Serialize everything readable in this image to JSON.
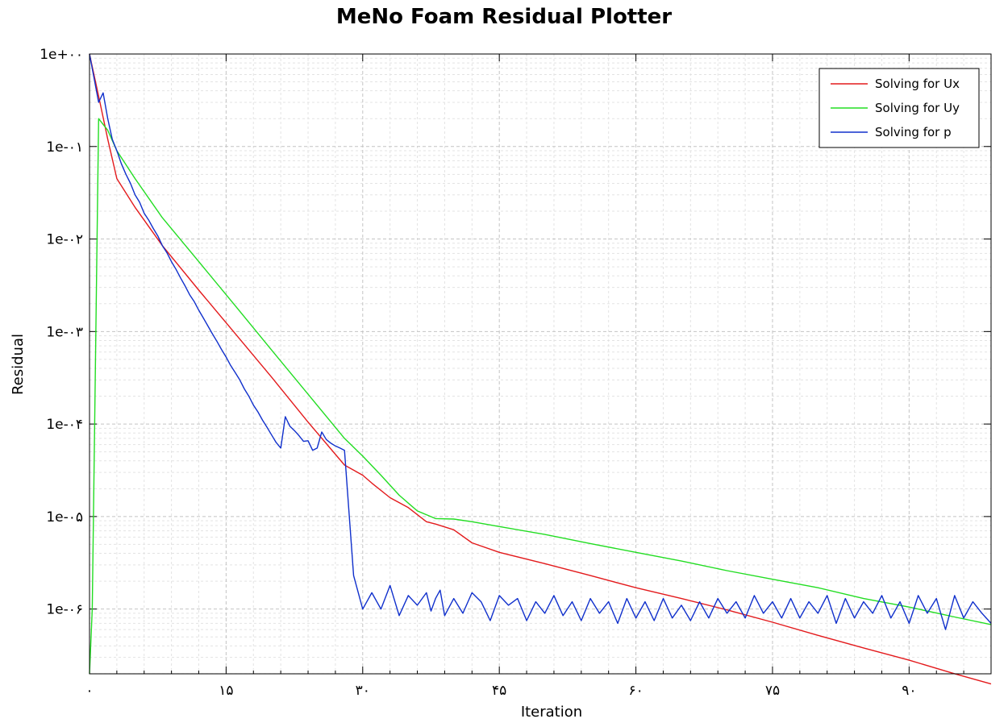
{
  "chart_data": {
    "type": "line",
    "title": "MeNo Foam Residual Plotter",
    "xlabel": "Iteration",
    "ylabel": "Residual",
    "xlim": [
      0,
      99
    ],
    "ylim_log10": [
      -6.7,
      0
    ],
    "yscale": "log",
    "grid": true,
    "legend_position": "top-right",
    "x_ticks": [
      0,
      15,
      30,
      45,
      60,
      75,
      90
    ],
    "x_tick_labels": [
      "۰",
      "۱۵",
      "۳۰",
      "۴۵",
      "۶۰",
      "۷۵",
      "۹۰"
    ],
    "y_ticks": [
      1,
      0.1,
      0.01,
      0.001,
      0.0001,
      1e-05,
      1e-06
    ],
    "y_tick_labels": [
      "1e+۰۰",
      "1e-۰۱",
      "1e-۰۲",
      "1e-۰۳",
      "1e-۰۴",
      "1e-۰۵",
      "1e-۰۶"
    ],
    "series": [
      {
        "name": "Solving for Ux",
        "color": "#e31a1c",
        "x": [
          0,
          1,
          2,
          3,
          5,
          8,
          12,
          16,
          20,
          24,
          28,
          30,
          31,
          33,
          35,
          37,
          38,
          40,
          42,
          45,
          50,
          55,
          60,
          65,
          70,
          75,
          80,
          85,
          90,
          95,
          99
        ],
        "y": [
          1,
          0.35,
          0.12,
          0.045,
          0.022,
          0.0085,
          0.0028,
          0.00095,
          0.00032,
          0.000105,
          3.6e-05,
          2.8e-05,
          2.3e-05,
          1.6e-05,
          1.25e-05,
          8.8e-06,
          8.3e-06,
          7.2e-06,
          5.2e-06,
          4.1e-06,
          3.1e-06,
          2.3e-06,
          1.7e-06,
          1.3e-06,
          9.8e-07,
          7.2e-07,
          5.2e-07,
          3.8e-07,
          2.8e-07,
          2e-07,
          1.55e-07
        ]
      },
      {
        "name": "Solving for Uy",
        "color": "#22dd22",
        "x": [
          0,
          0.3,
          1,
          2,
          3,
          5,
          8,
          12,
          16,
          20,
          24,
          28,
          30,
          32,
          34,
          36,
          38,
          40,
          42,
          45,
          50,
          55,
          60,
          65,
          70,
          75,
          80,
          85,
          90,
          95,
          99
        ],
        "y": [
          2e-07,
          1e-06,
          0.2,
          0.15,
          0.09,
          0.045,
          0.017,
          0.0057,
          0.0019,
          0.00063,
          0.00021,
          7e-05,
          4.5e-05,
          2.8e-05,
          1.7e-05,
          1.15e-05,
          9.5e-06,
          9.4e-06,
          8.8e-06,
          7.8e-06,
          6.4e-06,
          5.1e-06,
          4.1e-06,
          3.3e-06,
          2.6e-06,
          2.1e-06,
          1.7e-06,
          1.3e-06,
          1.05e-06,
          8.2e-07,
          6.8e-07
        ]
      },
      {
        "name": "Solving for p",
        "color": "#1030cc",
        "x": [
          0,
          1,
          1.5,
          2,
          2.5,
          3,
          3.5,
          4,
          4.5,
          5,
          5.5,
          6,
          6.5,
          7,
          7.5,
          8,
          8.5,
          9,
          9.5,
          10,
          10.5,
          11,
          11.5,
          12,
          12.5,
          13,
          13.5,
          14,
          14.5,
          15,
          15.5,
          16,
          16.5,
          17,
          17.5,
          18,
          18.5,
          19,
          19.5,
          20,
          20.5,
          21,
          21.5,
          22,
          22.5,
          23,
          23.5,
          24,
          24.5,
          25,
          25.5,
          26,
          26.5,
          27,
          27.5,
          28,
          29,
          30,
          31,
          32,
          33,
          34,
          35,
          36,
          37,
          37.5,
          38,
          38.5,
          39,
          40,
          41,
          42,
          43,
          44,
          45,
          46,
          47,
          48,
          49,
          50,
          51,
          52,
          53,
          54,
          55,
          56,
          57,
          58,
          59,
          60,
          61,
          62,
          63,
          64,
          65,
          66,
          67,
          68,
          69,
          70,
          71,
          72,
          73,
          74,
          75,
          76,
          77,
          78,
          79,
          80,
          81,
          82,
          83,
          84,
          85,
          86,
          87,
          88,
          89,
          90,
          91,
          92,
          93,
          94,
          95,
          96,
          97,
          98,
          99
        ],
        "y": [
          1,
          0.3,
          0.38,
          0.2,
          0.12,
          0.09,
          0.065,
          0.05,
          0.04,
          0.03,
          0.025,
          0.019,
          0.016,
          0.013,
          0.0108,
          0.0085,
          0.0071,
          0.0057,
          0.0047,
          0.0038,
          0.0031,
          0.0025,
          0.0021,
          0.0017,
          0.0014,
          0.00115,
          0.00094,
          0.00078,
          0.00064,
          0.00053,
          0.00043,
          0.00036,
          0.0003,
          0.00024,
          0.0002,
          0.00016,
          0.000135,
          0.00011,
          9.2e-05,
          7.6e-05,
          6.3e-05,
          5.5e-05,
          0.00012,
          9.5e-05,
          8.5e-05,
          7.5e-05,
          6.5e-05,
          6.6e-05,
          5.2e-05,
          5.5e-05,
          8.2e-05,
          6.8e-05,
          6.2e-05,
          5.8e-05,
          5.5e-05,
          5.2e-05,
          2.3e-06,
          1e-06,
          1.5e-06,
          1e-06,
          1.8e-06,
          8.5e-07,
          1.4e-06,
          1.1e-06,
          1.5e-06,
          9.5e-07,
          1.3e-06,
          1.6e-06,
          8.5e-07,
          1.3e-06,
          9e-07,
          1.5e-06,
          1.2e-06,
          7.5e-07,
          1.4e-06,
          1.1e-06,
          1.3e-06,
          7.5e-07,
          1.2e-06,
          9e-07,
          1.4e-06,
          8.5e-07,
          1.2e-06,
          7.5e-07,
          1.3e-06,
          9e-07,
          1.2e-06,
          7e-07,
          1.3e-06,
          8e-07,
          1.2e-06,
          7.5e-07,
          1.3e-06,
          8e-07,
          1.1e-06,
          7.5e-07,
          1.2e-06,
          8e-07,
          1.3e-06,
          9e-07,
          1.2e-06,
          8e-07,
          1.4e-06,
          9e-07,
          1.2e-06,
          8e-07,
          1.3e-06,
          8e-07,
          1.2e-06,
          9e-07,
          1.4e-06,
          7e-07,
          1.3e-06,
          8e-07,
          1.2e-06,
          9e-07,
          1.4e-06,
          8e-07,
          1.2e-06,
          7e-07,
          1.4e-06,
          9e-07,
          1.3e-06,
          6e-07,
          1.4e-06,
          8e-07,
          1.2e-06,
          9e-07,
          7e-07
        ]
      }
    ]
  }
}
